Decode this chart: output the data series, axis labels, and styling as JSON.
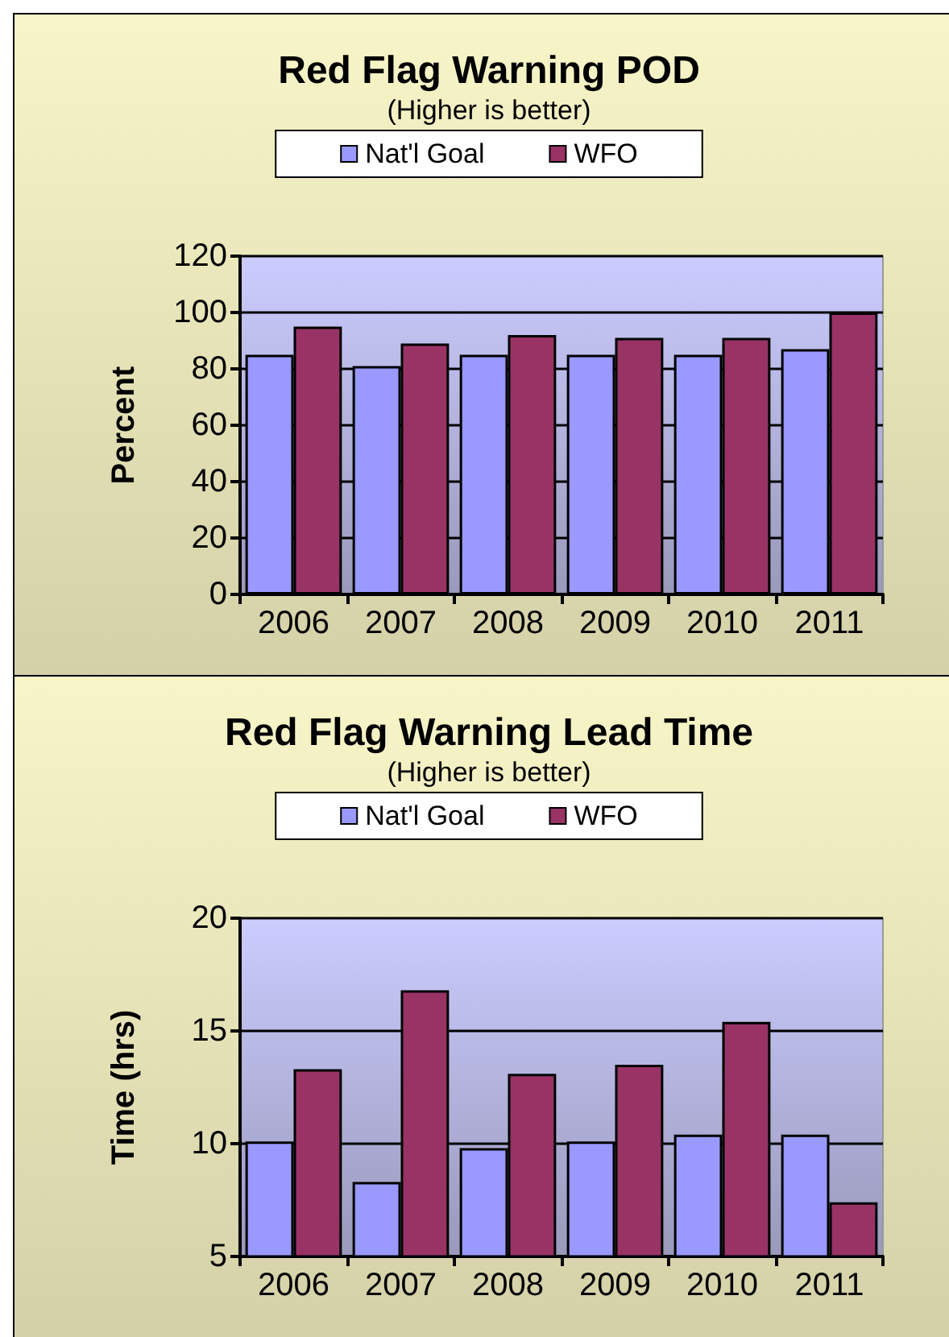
{
  "chart_data": [
    {
      "type": "bar",
      "title": "Red Flag Warning POD",
      "subtitle": "(Higher is better)",
      "ylabel": "Percent",
      "categories": [
        "2006",
        "2007",
        "2008",
        "2009",
        "2010",
        "2011"
      ],
      "series": [
        {
          "name": "Nat'l Goal",
          "color": "#9999ff",
          "values": [
            85,
            81,
            85,
            85,
            85,
            87
          ]
        },
        {
          "name": "WFO",
          "color": "#993366",
          "values": [
            95,
            89,
            92,
            91,
            91,
            100
          ]
        }
      ],
      "ylim": [
        0,
        120
      ],
      "yticks": [
        0,
        20,
        40,
        60,
        80,
        100,
        120
      ],
      "grid": "y",
      "legend": "top"
    },
    {
      "type": "bar",
      "title": "Red Flag Warning Lead Time",
      "subtitle": "(Higher is better)",
      "ylabel": "Time (hrs)",
      "categories": [
        "2006",
        "2007",
        "2008",
        "2009",
        "2010",
        "2011"
      ],
      "series": [
        {
          "name": "Nat'l Goal",
          "color": "#9999ff",
          "values": [
            10.1,
            8.3,
            9.8,
            10.1,
            10.4,
            10.4
          ]
        },
        {
          "name": "WFO",
          "color": "#993366",
          "values": [
            13.3,
            16.8,
            13.1,
            13.5,
            15.4,
            7.4
          ]
        }
      ],
      "ylim": [
        5,
        20
      ],
      "yticks": [
        5,
        10,
        15,
        20
      ],
      "grid": "y",
      "legend": "top"
    }
  ]
}
